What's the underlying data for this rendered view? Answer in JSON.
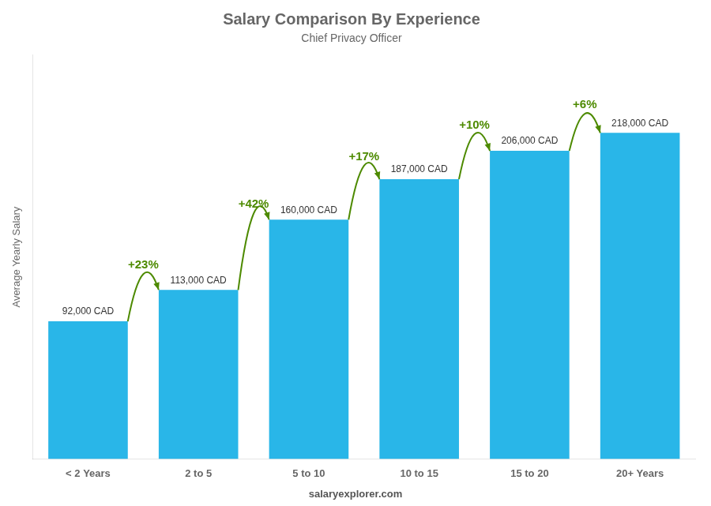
{
  "chart_data": {
    "type": "bar",
    "title": "Salary Comparison By Experience",
    "subtitle": "Chief Privacy Officer",
    "categories": [
      "< 2 Years",
      "2 to 5",
      "5 to 10",
      "10 to 15",
      "15 to 20",
      "20+ Years"
    ],
    "values": [
      92000,
      113000,
      160000,
      187000,
      206000,
      218000
    ],
    "value_labels": [
      "92,000 CAD",
      "113,000 CAD",
      "160,000 CAD",
      "187,000 CAD",
      "206,000 CAD",
      "218,000 CAD"
    ],
    "data_labels": true,
    "color": "#29b6e8",
    "ylabel": "Average Yearly Salary",
    "ylim": [
      0,
      270000
    ],
    "grid": false,
    "tick_labels": "x",
    "annotations": [
      {
        "text": "+23%",
        "from": "< 2 Years",
        "to": "2 to 5"
      },
      {
        "text": "+42%",
        "from": "2 to 5",
        "to": "5 to 10"
      },
      {
        "text": "+17%",
        "from": "5 to 10",
        "to": "10 to 15"
      },
      {
        "text": "+10%",
        "from": "10 to 15",
        "to": "15 to 20"
      },
      {
        "text": "+6%",
        "from": "15 to 20",
        "to": "20+ Years"
      },
      {
        "text": "salaryexplorer.com"
      }
    ]
  }
}
